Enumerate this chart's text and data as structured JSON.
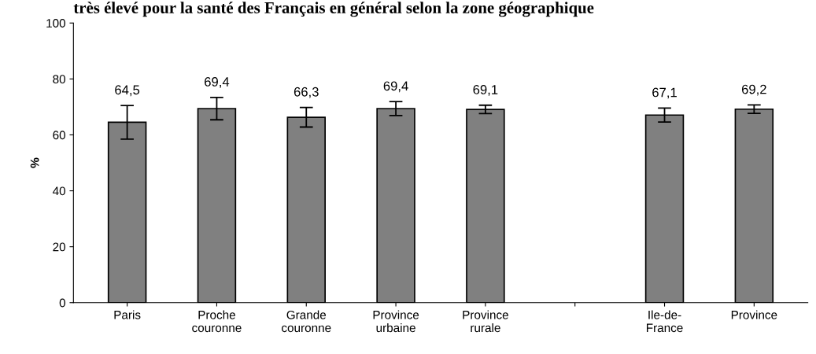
{
  "chart_data": {
    "type": "bar",
    "title": "très élevé pour la santé des Français en général selon la zone géographique",
    "ylabel": "%",
    "categories": [
      "Paris",
      "Proche\ncouronne",
      "Grande\ncouronne",
      "Province\nurbaine",
      "Province\nrurale",
      null,
      "Ile-de-\nFrance",
      "Province"
    ],
    "values": [
      64.5,
      69.4,
      66.3,
      69.4,
      69.1,
      null,
      67.1,
      69.2
    ],
    "errors": [
      6,
      4,
      3.5,
      2.5,
      1.5,
      null,
      2.5,
      1.5
    ],
    "value_labels": [
      "64,5",
      "69,4",
      "66,3",
      "69,4",
      "69,1",
      null,
      "67,1",
      "69,2"
    ],
    "color": "#808080",
    "ylim": [
      0,
      100
    ],
    "yticks": [
      0,
      20,
      40,
      60,
      80,
      100
    ],
    "grid": false
  }
}
